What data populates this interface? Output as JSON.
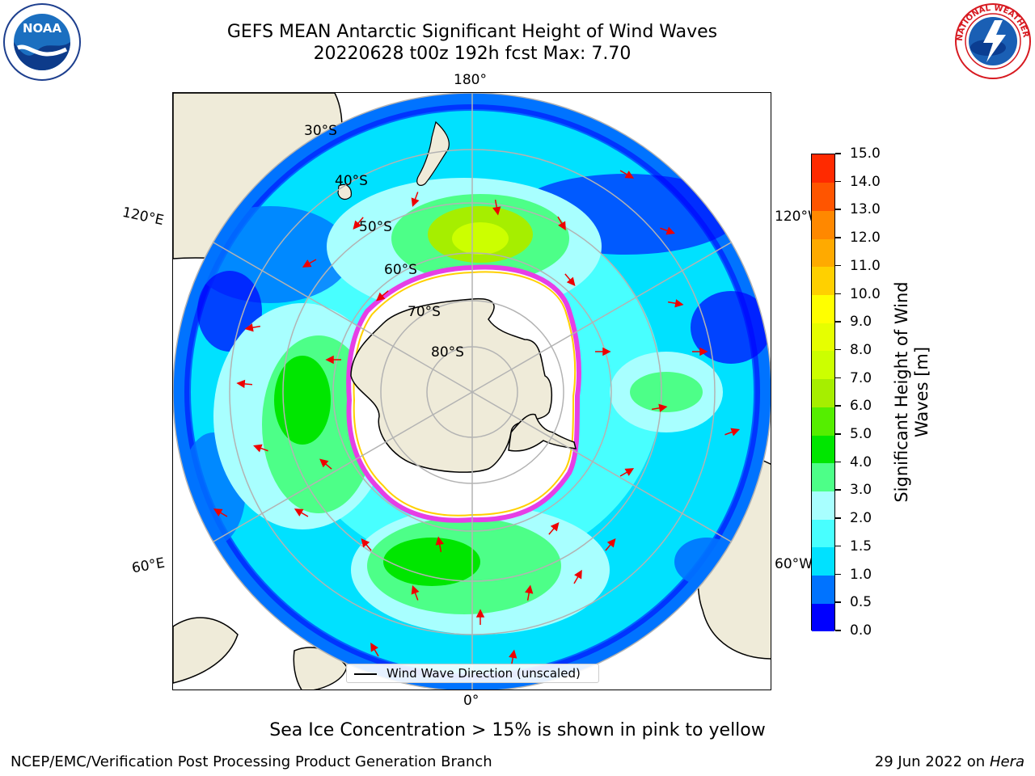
{
  "header": {
    "title": "GEFS MEAN Antarctic Significant Height of Wind Waves",
    "subtitle": "20220628 t00z 192h fcst   Max: 7.70"
  },
  "logos": {
    "left": "noaa-logo",
    "left_text": "NOAA",
    "right": "national-weather-service-logo",
    "right_text": "NATIONAL WEATHER SERVICE"
  },
  "map": {
    "projection": "south-polar-stereographic",
    "latitude_labels": [
      "30°S",
      "40°S",
      "50°S",
      "60°S",
      "70°S",
      "80°S"
    ],
    "longitude_labels": {
      "top": "180°",
      "bottom": "0°",
      "left_upper": "120°E",
      "left_lower": "60°E",
      "right_upper": "120°W",
      "right_lower": "60°W"
    },
    "legend": {
      "line_color": "#000000",
      "label": "Wind Wave Direction (unscaled)"
    },
    "colors": {
      "land": "#efebd9",
      "sea_ice": "#ffffff",
      "ice_edge": "#e63ee6",
      "arrows": "#ee0000",
      "grid": "#b3b3b3"
    }
  },
  "colorbar": {
    "label": "Significant Height of Wind Waves [m]",
    "ticks": [
      "0.0",
      "0.5",
      "1.0",
      "1.5",
      "2.0",
      "3.0",
      "4.0",
      "5.0",
      "6.0",
      "7.0",
      "8.0",
      "9.0",
      "10.0",
      "11.0",
      "12.0",
      "13.0",
      "14.0",
      "15.0"
    ],
    "colors": [
      "#0000ff",
      "#0073ff",
      "#00e1ff",
      "#48ffff",
      "#a8ffff",
      "#4dff88",
      "#00e600",
      "#55ee00",
      "#a6ee00",
      "#ccff00",
      "#e6ff00",
      "#ffff00",
      "#ffd000",
      "#ffaa00",
      "#ff8800",
      "#ff5500",
      "#ff2a00"
    ]
  },
  "footer": {
    "note": "Sea Ice Concentration > 15% is shown in pink to yellow",
    "left": "NCEP/EMC/Verification Post Processing Product Generation Branch",
    "right_date": "29 Jun 2022 on",
    "right_host": "Hera"
  }
}
